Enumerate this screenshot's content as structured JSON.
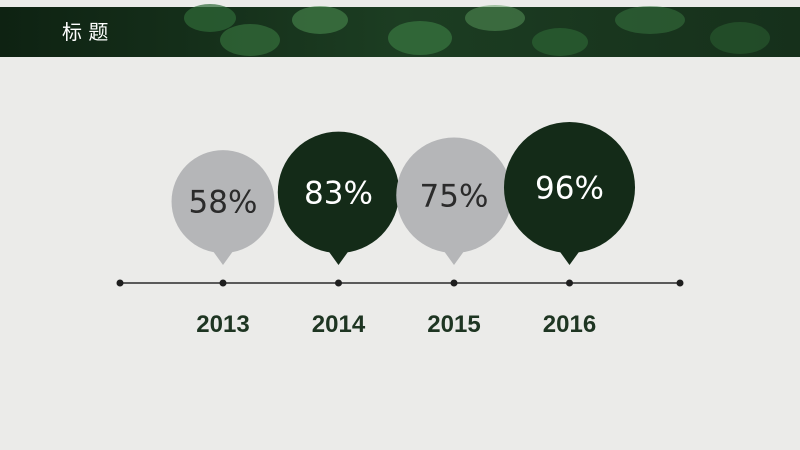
{
  "chart_data": {
    "type": "timeline",
    "title": "标 题",
    "categories": [
      "2013",
      "2014",
      "2015",
      "2016"
    ],
    "values": [
      58,
      83,
      75,
      96
    ],
    "value_labels": [
      "58%",
      "83%",
      "75%",
      "96%"
    ],
    "colors": [
      "#b5b6b8",
      "#142b18",
      "#b5b6b8",
      "#142b18"
    ],
    "label_colors": [
      "#2b2b2b",
      "#ffffff",
      "#2b2b2b",
      "#ffffff"
    ]
  }
}
